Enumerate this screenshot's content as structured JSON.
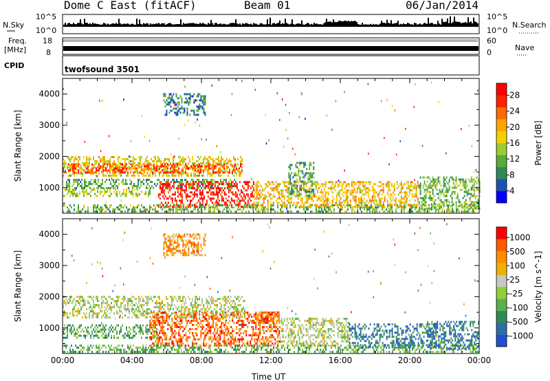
{
  "header": {
    "station": "Dome C East (fitACF)",
    "beam": "Beam 01",
    "date": "06/Jan/2014"
  },
  "strip": {
    "nsky_label": "N.Sky",
    "nsearch_label": "N.Search",
    "freq_label_1": "Freq.",
    "freq_label_2": "[MHz]",
    "nave_label": "Nave",
    "cpid_label": "CPID",
    "cpid_value": "twofsound 3501",
    "noise_ticks": [
      "10^5",
      "10^0"
    ],
    "freq_ticks": [
      "18",
      "8"
    ],
    "nave_ticks": [
      "60",
      "0"
    ],
    "noise_right_ticks": [
      "10^5",
      "10^0"
    ]
  },
  "chart_data": [
    {
      "type": "heatmap",
      "panel": "power",
      "x": {
        "label": "Time UT",
        "range": [
          "00:00",
          "00:00"
        ],
        "ticks": [
          "00:00",
          "04:00",
          "08:00",
          "12:00",
          "16:00",
          "20:00",
          "00:00"
        ]
      },
      "y": {
        "label": "Slant Range [km]",
        "range_km": [
          180,
          4500
        ],
        "ticks": [
          1000,
          2000,
          3000,
          4000
        ]
      },
      "colorbar": {
        "label": "Power [dB]",
        "ticks": [
          "28",
          "24",
          "20",
          "16",
          "12",
          "8",
          "4"
        ],
        "colors": [
          "#0000ff",
          "#1e50b4",
          "#2e8b57",
          "#5aaa3c",
          "#9acd32",
          "#f5d000",
          "#ffa500",
          "#ff6a00",
          "#ff2000",
          "#ff0000"
        ]
      },
      "regions": [
        {
          "t0": 0.0,
          "t1": 10.3,
          "r0": 1350,
          "r1": 1950,
          "level": 0.55
        },
        {
          "t0": 0.0,
          "t1": 10.3,
          "r0": 1450,
          "r1": 1750,
          "level": 0.8
        },
        {
          "t0": 0.2,
          "t1": 10.0,
          "r0": 950,
          "r1": 1250,
          "level": 0.3
        },
        {
          "t0": 0.0,
          "t1": 5.0,
          "r0": 700,
          "r1": 950,
          "level": 0.45
        },
        {
          "t0": 5.5,
          "t1": 11.0,
          "r0": 350,
          "r1": 1150,
          "level": 0.95
        },
        {
          "t0": 0.0,
          "t1": 24.0,
          "r0": 200,
          "r1": 420,
          "level": 0.35
        },
        {
          "t0": 11.0,
          "t1": 20.5,
          "r0": 350,
          "r1": 1200,
          "level": 0.6
        },
        {
          "t0": 13.0,
          "t1": 14.5,
          "r0": 700,
          "r1": 1800,
          "level": 0.3
        },
        {
          "t0": 20.5,
          "t1": 24.0,
          "r0": 300,
          "r1": 1300,
          "level": 0.35
        },
        {
          "t0": 5.8,
          "t1": 8.2,
          "r0": 3300,
          "r1": 4000,
          "level": 0.2
        }
      ]
    },
    {
      "type": "heatmap",
      "panel": "velocity",
      "x": {
        "label": "Time UT",
        "range": [
          "00:00",
          "00:00"
        ],
        "ticks": [
          "00:00",
          "04:00",
          "08:00",
          "12:00",
          "16:00",
          "20:00",
          "00:00"
        ]
      },
      "y": {
        "label": "Slant Range [km]",
        "range_km": [
          180,
          4500
        ],
        "ticks": [
          1000,
          2000,
          3000,
          4000
        ]
      },
      "colorbar": {
        "label": "Velocity [m s^-1]",
        "ticks": [
          "1000",
          "500",
          "100",
          "25",
          "-25",
          "-100",
          "-500",
          "-1000"
        ],
        "colors": [
          "#1e4fd0",
          "#2d6da8",
          "#2e8b57",
          "#5bb04a",
          "#8fcf3a",
          "#c8c8c0",
          "#f0b000",
          "#ff8c00",
          "#ff5a00",
          "#ff0000"
        ]
      },
      "regions": [
        {
          "t0": 0.0,
          "t1": 10.5,
          "r0": 1300,
          "r1": 2000,
          "level": 0.5
        },
        {
          "t0": 0.0,
          "t1": 5.5,
          "r0": 650,
          "r1": 1050,
          "level": 0.3
        },
        {
          "t0": 5.0,
          "t1": 12.5,
          "r0": 400,
          "r1": 1500,
          "level": 0.85
        },
        {
          "t0": 11.0,
          "t1": 12.5,
          "r0": 1200,
          "r1": 1500,
          "level": 0.85
        },
        {
          "t0": 0.0,
          "t1": 24.0,
          "r0": 200,
          "r1": 420,
          "level": 0.35
        },
        {
          "t0": 12.5,
          "t1": 16.5,
          "r0": 400,
          "r1": 1300,
          "level": 0.5
        },
        {
          "t0": 16.5,
          "t1": 21.5,
          "r0": 350,
          "r1": 1100,
          "level": 0.15
        },
        {
          "t0": 21.0,
          "t1": 24.0,
          "r0": 300,
          "r1": 1200,
          "level": 0.15
        },
        {
          "t0": 5.8,
          "t1": 8.2,
          "r0": 3300,
          "r1": 4000,
          "level": 0.75
        }
      ]
    }
  ]
}
